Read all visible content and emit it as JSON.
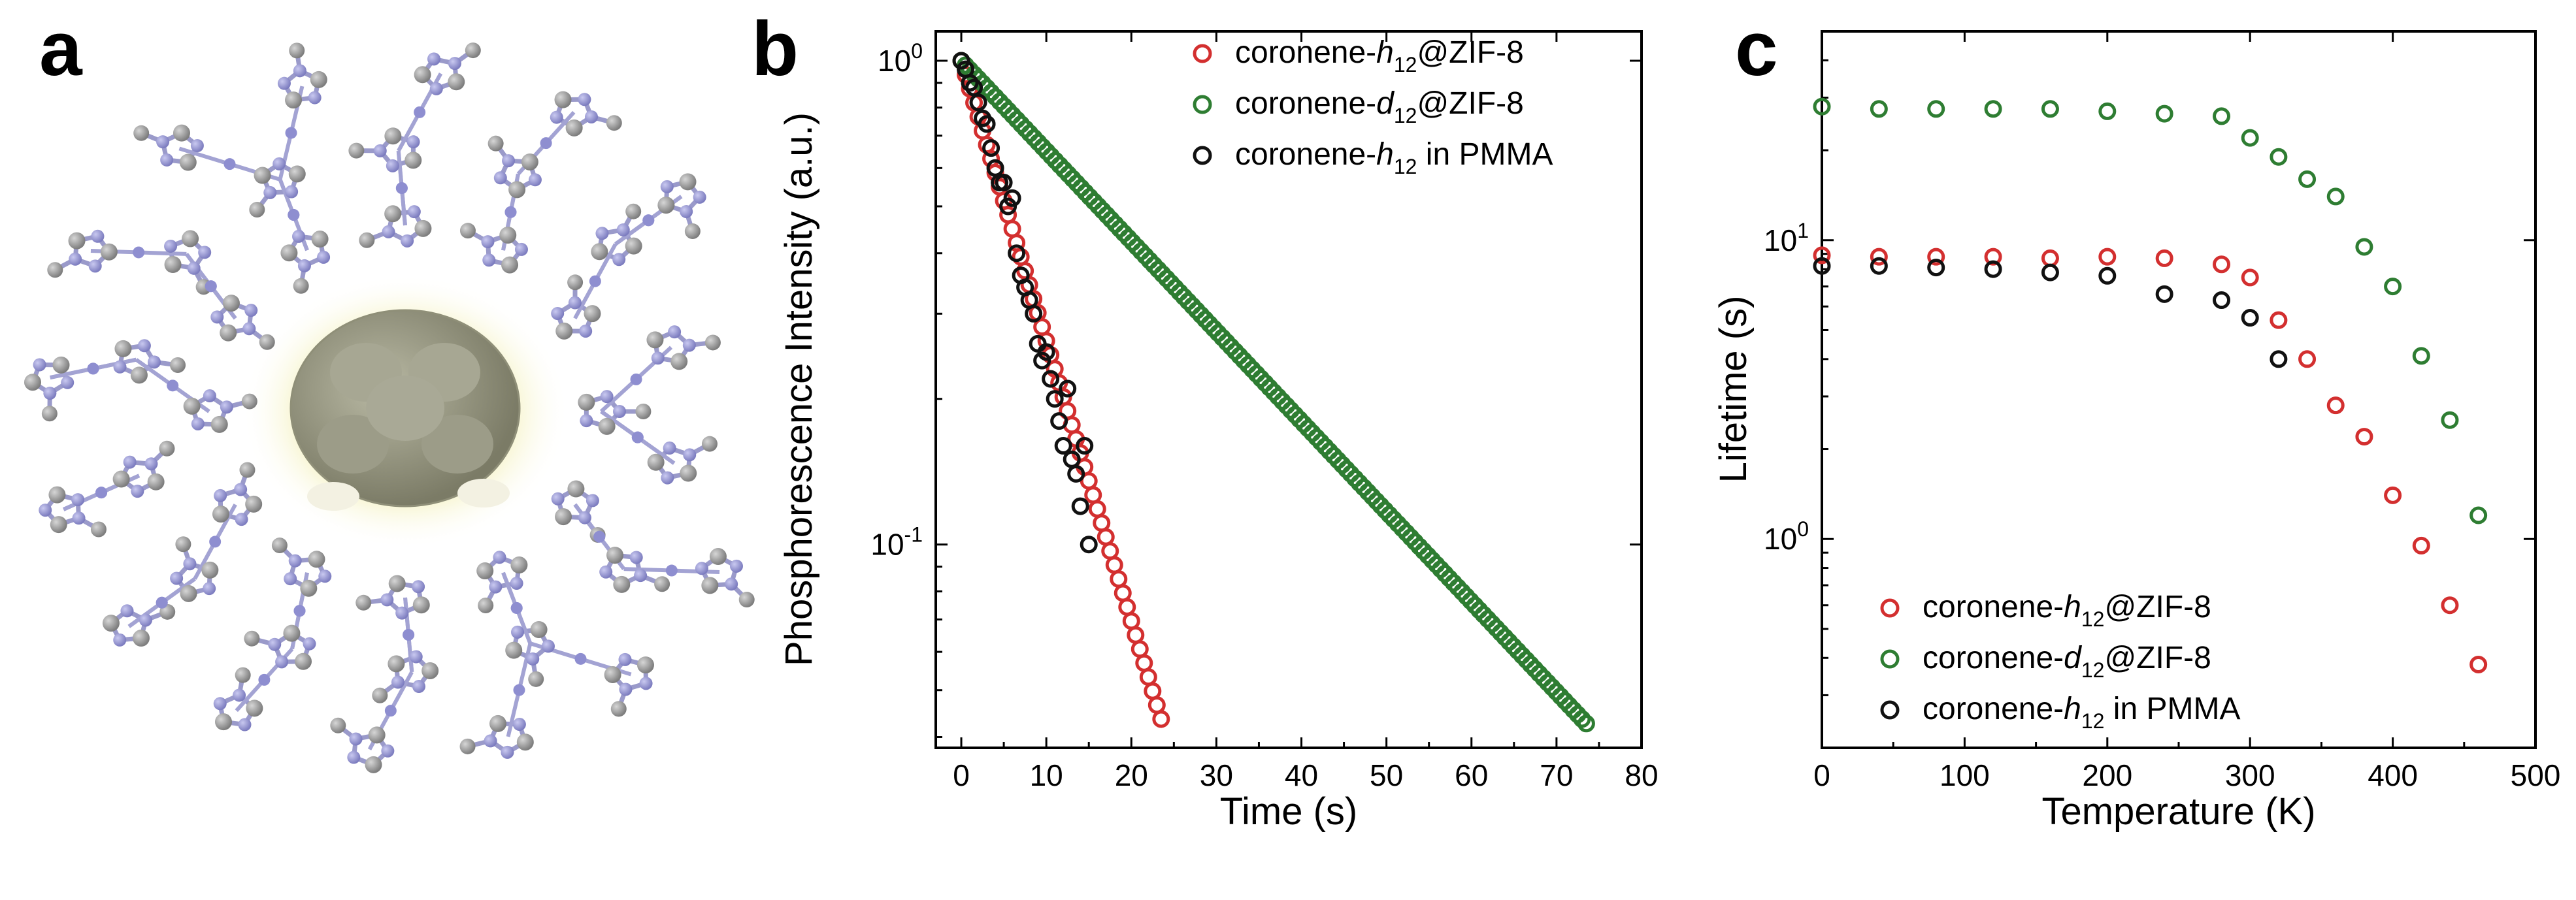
{
  "panels": [
    {
      "letter": "a"
    },
    {
      "letter": "b"
    },
    {
      "letter": "c"
    }
  ],
  "legend_b": [
    {
      "base": "coronene-",
      "iso": "h",
      "sub": "12",
      "suffix": "@ZIF-8",
      "color": "#d32f2f"
    },
    {
      "base": "coronene-",
      "iso": "d",
      "sub": "12",
      "suffix": "@ZIF-8",
      "color": "#2e7d32"
    },
    {
      "base": "coronene-",
      "iso": "h",
      "sub": "12",
      "suffix": " in PMMA",
      "color": "#111111"
    }
  ],
  "legend_c": [
    {
      "base": "coronene-",
      "iso": "h",
      "sub": "12",
      "suffix": "@ZIF-8",
      "color": "#d32f2f"
    },
    {
      "base": "coronene-",
      "iso": "d",
      "sub": "12",
      "suffix": "@ZIF-8",
      "color": "#2e7d32"
    },
    {
      "base": "coronene-",
      "iso": "h",
      "sub": "12",
      "suffix": " in PMMA",
      "color": "#111111"
    }
  ],
  "chart_data": [
    {
      "type": "scatter",
      "panel": "b",
      "xlabel": "Time (s)",
      "ylabel": "Phosphorescence Intensity (a.u.)",
      "xlim": [
        -3,
        80
      ],
      "ylim": [
        0.038,
        1.15
      ],
      "yscale": "log",
      "xticks": [
        0,
        10,
        20,
        30,
        40,
        50,
        60,
        70,
        80
      ],
      "yticks": [
        {
          "value": 1,
          "base": "10",
          "exp": "0"
        },
        {
          "value": 0.1,
          "base": "10",
          "exp": "-1"
        }
      ],
      "series": [
        {
          "name": "coronene-h12@ZIF-8",
          "color": "#d32f2f",
          "model": "exp",
          "x0": 0,
          "y0": 1.0,
          "tau": 7.5,
          "xmax": 23.5,
          "n": 48
        },
        {
          "name": "coronene-d12@ZIF-8",
          "color": "#2e7d32",
          "model": "exp",
          "x0": 0,
          "y0": 1.0,
          "tau": 23.3,
          "xmax": 73.5,
          "n": 147
        },
        {
          "name": "coronene-h12 in PMMA",
          "color": "#111111",
          "x": [
            0.0,
            0.5,
            1.0,
            1.5,
            2.0,
            2.5,
            3.0,
            3.5,
            4.0,
            4.5,
            5.0,
            5.5,
            6.0,
            6.5,
            7.0,
            7.5,
            8.0,
            8.5,
            9.0,
            9.5,
            10.0,
            10.5,
            11.0,
            11.5,
            12.0,
            12.5,
            13.0,
            13.5,
            14.0,
            14.5,
            15.0
          ],
          "y": [
            1.0,
            0.96,
            0.9,
            0.88,
            0.82,
            0.76,
            0.74,
            0.66,
            0.6,
            0.56,
            0.56,
            0.5,
            0.52,
            0.4,
            0.36,
            0.34,
            0.32,
            0.3,
            0.26,
            0.24,
            0.25,
            0.22,
            0.2,
            0.18,
            0.16,
            0.21,
            0.15,
            0.14,
            0.12,
            0.16,
            0.1
          ]
        }
      ]
    },
    {
      "type": "scatter",
      "panel": "c",
      "xlabel": "Temperature (K)",
      "ylabel": "Lifetime (s)",
      "xlim": [
        0,
        500
      ],
      "ylim": [
        0.2,
        50
      ],
      "yscale": "log",
      "xticks": [
        0,
        100,
        200,
        300,
        400,
        500
      ],
      "yticks": [
        {
          "value": 10,
          "base": "10",
          "exp": "1"
        },
        {
          "value": 1,
          "base": "10",
          "exp": "0"
        }
      ],
      "series": [
        {
          "name": "coronene-h12@ZIF-8",
          "color": "#d32f2f",
          "x": [
            0,
            40,
            80,
            120,
            160,
            200,
            240,
            280,
            300,
            320,
            340,
            360,
            380,
            400,
            420,
            440,
            460
          ],
          "y": [
            8.9,
            8.8,
            8.8,
            8.8,
            8.7,
            8.8,
            8.7,
            8.3,
            7.5,
            5.4,
            4.0,
            2.8,
            2.2,
            1.4,
            0.95,
            0.6,
            0.38
          ]
        },
        {
          "name": "coronene-d12@ZIF-8",
          "color": "#2e7d32",
          "x": [
            0,
            40,
            80,
            120,
            160,
            200,
            240,
            280,
            300,
            320,
            340,
            360,
            380,
            400,
            420,
            440,
            460
          ],
          "y": [
            28,
            27.5,
            27.5,
            27.5,
            27.5,
            27,
            26.5,
            26,
            22,
            19,
            16,
            14,
            9.5,
            7.0,
            4.1,
            2.5,
            1.2
          ]
        },
        {
          "name": "coronene-h12 in PMMA",
          "color": "#111111",
          "x": [
            0,
            40,
            80,
            120,
            160,
            200,
            240,
            280,
            300,
            320
          ],
          "y": [
            8.2,
            8.2,
            8.1,
            8.0,
            7.8,
            7.6,
            6.6,
            6.3,
            5.5,
            4.0
          ]
        }
      ]
    }
  ]
}
